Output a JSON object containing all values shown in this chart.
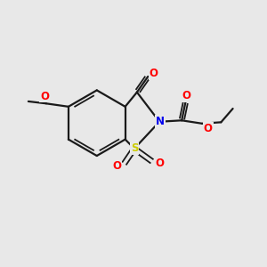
{
  "bg_color": "#e8e8e8",
  "bond_color": "#1a1a1a",
  "atom_colors": {
    "N": "#0000ee",
    "O": "#ff0000",
    "S": "#cccc00",
    "C": "#1a1a1a"
  },
  "bond_lw": 1.6,
  "dbl_lw": 1.3,
  "label_fs": 8.5,
  "bg_hex": "#e8e8e8"
}
